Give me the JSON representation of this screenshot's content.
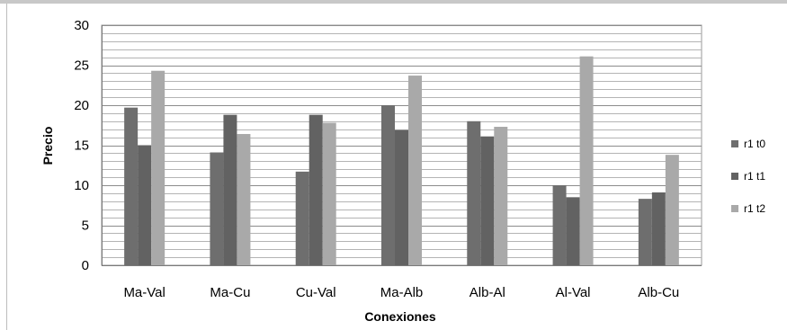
{
  "chart_data": {
    "type": "bar",
    "title": "",
    "xlabel": "Conexiones",
    "ylabel": "Precio",
    "ylim": [
      0,
      30
    ],
    "yticks": [
      0,
      5,
      10,
      15,
      20,
      25,
      30
    ],
    "grid": true,
    "legend_position": "right",
    "categories": [
      "Ma-Val",
      "Ma-Cu",
      "Cu-Val",
      "Ma-Alb",
      "Alb-Al",
      "Al-Val",
      "Alb-Cu"
    ],
    "series": [
      {
        "name": "r1 t0",
        "color": "#6e6e6e",
        "values": [
          19.7,
          14.1,
          11.7,
          20.0,
          18.0,
          10.0,
          8.3
        ]
      },
      {
        "name": "r1 t1",
        "color": "#626262",
        "values": [
          15.0,
          18.8,
          18.8,
          16.9,
          16.1,
          8.5,
          9.1
        ]
      },
      {
        "name": "r1 t2",
        "color": "#a9a9a9",
        "values": [
          24.3,
          16.4,
          17.8,
          23.7,
          17.3,
          26.1,
          13.8
        ]
      }
    ]
  }
}
